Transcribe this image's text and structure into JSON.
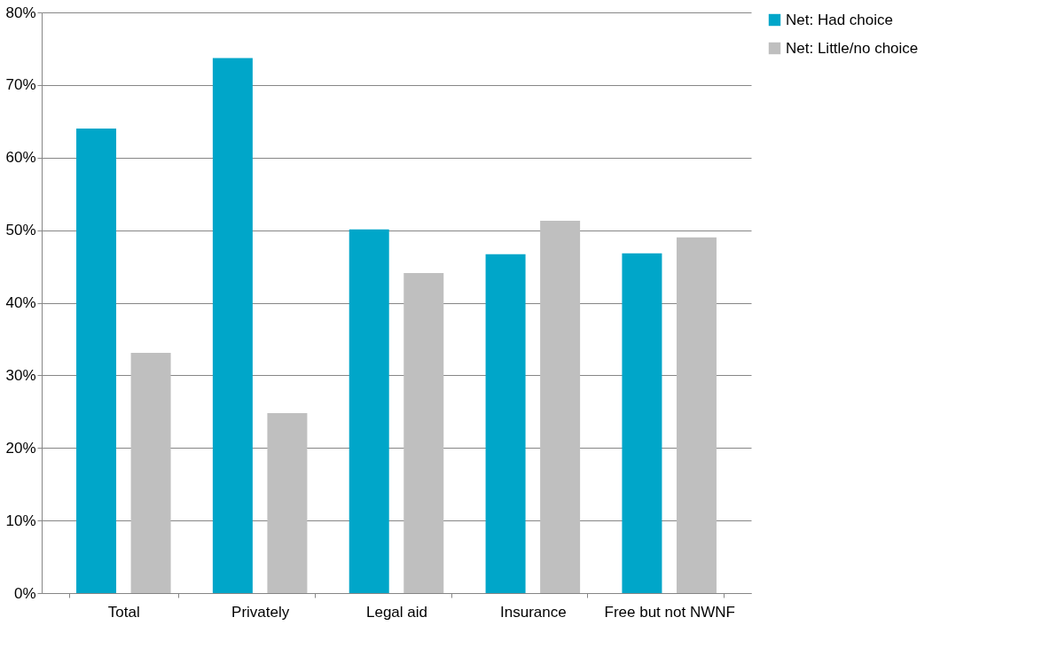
{
  "chart_data": {
    "type": "bar",
    "categories": [
      "Total",
      "Privately",
      "Legal aid",
      "Insurance",
      "Free but not NWNF"
    ],
    "series": [
      {
        "name": "Net: Had choice",
        "color": "#00a6c9",
        "values": [
          64.0,
          73.7,
          50.1,
          46.7,
          46.8
        ]
      },
      {
        "name": "Net: Little/no choice",
        "color": "#bfbfbf",
        "values": [
          33.1,
          24.8,
          44.1,
          51.3,
          49.0
        ]
      }
    ],
    "ylim": [
      0,
      80
    ],
    "yticks": [
      {
        "value": 0,
        "label": "0%"
      },
      {
        "value": 10,
        "label": "10%"
      },
      {
        "value": 20,
        "label": "20%"
      },
      {
        "value": 30,
        "label": "30%"
      },
      {
        "value": 40,
        "label": "40%"
      },
      {
        "value": 50,
        "label": "50%"
      },
      {
        "value": 60,
        "label": "60%"
      },
      {
        "value": 70,
        "label": "70%"
      },
      {
        "value": 80,
        "label": "80%"
      }
    ],
    "grid": "y",
    "legend": "right"
  }
}
